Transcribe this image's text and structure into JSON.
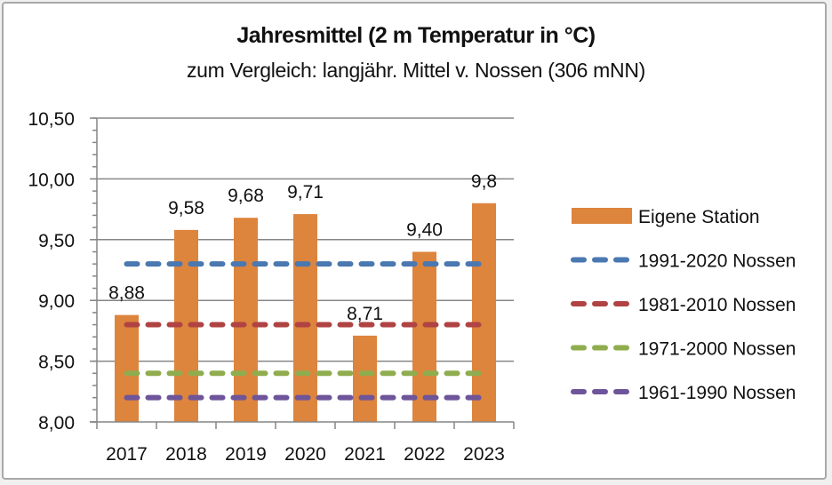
{
  "chart_data": {
    "type": "bar",
    "title": "Jahresmittel (2 m Temperatur in °C)",
    "subtitle": "zum Vergleich: langjähr. Mittel v.  Nossen (306 mNN)",
    "xlabel": "",
    "ylabel": "",
    "ylim": [
      8.0,
      10.5
    ],
    "y_major_step": 0.5,
    "y_minor_step": 0.1,
    "y_tick_labels": [
      "8,00",
      "8,50",
      "9,00",
      "9,50",
      "10,00",
      "10,50"
    ],
    "grid": true,
    "legend_position": "right",
    "categories": [
      "2017",
      "2018",
      "2019",
      "2020",
      "2021",
      "2022",
      "2023"
    ],
    "series": [
      {
        "name": "Eigene Station",
        "kind": "bar",
        "color": "#dd843d",
        "values": [
          8.88,
          9.58,
          9.68,
          9.71,
          8.71,
          9.4,
          9.8
        ],
        "data_labels": [
          "8,88",
          "9,58",
          "9,68",
          "9,71",
          "8,71",
          "9,40",
          "9,8"
        ]
      },
      {
        "name": "1991-2020 Nossen",
        "kind": "dashed-line",
        "color": "#4a78b0",
        "values": [
          9.3,
          9.3,
          9.3,
          9.3,
          9.3,
          9.3,
          9.3
        ]
      },
      {
        "name": "1981-2010 Nossen",
        "kind": "dashed-line",
        "color": "#b04343",
        "values": [
          8.8,
          8.8,
          8.8,
          8.8,
          8.8,
          8.8,
          8.8
        ]
      },
      {
        "name": "1971-2000 Nossen",
        "kind": "dashed-line",
        "color": "#8fad4e",
        "values": [
          8.4,
          8.4,
          8.4,
          8.4,
          8.4,
          8.4,
          8.4
        ]
      },
      {
        "name": "1961-1990 Nossen",
        "kind": "dashed-line",
        "color": "#6e559a",
        "values": [
          8.2,
          8.2,
          8.2,
          8.2,
          8.2,
          8.2,
          8.2
        ]
      }
    ]
  }
}
